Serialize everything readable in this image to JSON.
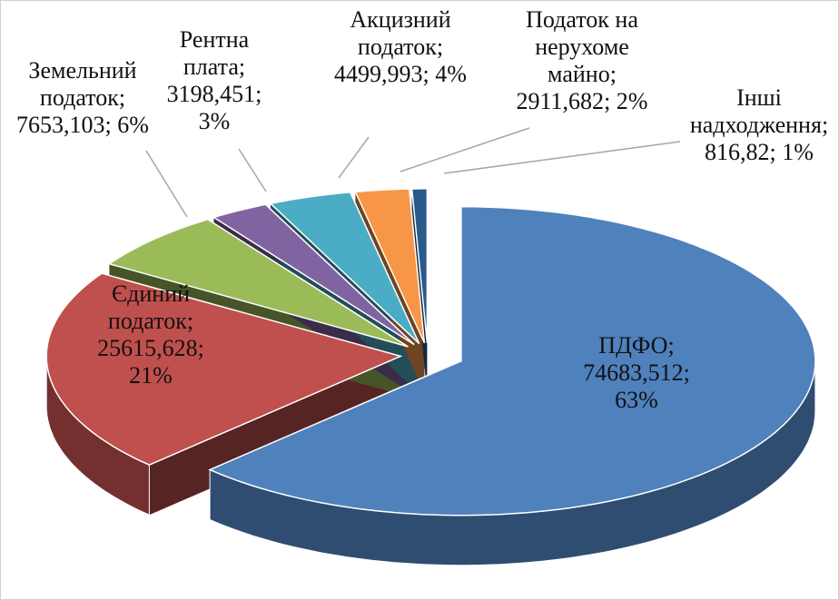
{
  "chart_data": {
    "type": "pie3d",
    "categories": [
      "ПДФО",
      "Єдиний податок",
      "Земельний податок",
      "Рентна плата",
      "Акцизний податок",
      "Податок на нерухоме майно",
      "Інші надходження"
    ],
    "values": [
      74683.512,
      25615.628,
      7653.103,
      3198.451,
      4499.993,
      2911.682,
      816.82
    ],
    "value_labels": [
      "74683,512",
      "25615,628",
      "7653,103",
      "3198,451",
      "4499,993",
      "2911,682",
      "816,82"
    ],
    "percents": [
      63,
      21,
      6,
      3,
      4,
      2,
      1
    ],
    "percent_labels": [
      "63%",
      "21%",
      "6%",
      "3%",
      "4%",
      "2%",
      "1%"
    ],
    "separator": ";",
    "colors": [
      "#4f81bd",
      "#c0504d",
      "#9bbb59",
      "#8064a2",
      "#4bacc6",
      "#f79646",
      "#2a5a8c"
    ]
  }
}
